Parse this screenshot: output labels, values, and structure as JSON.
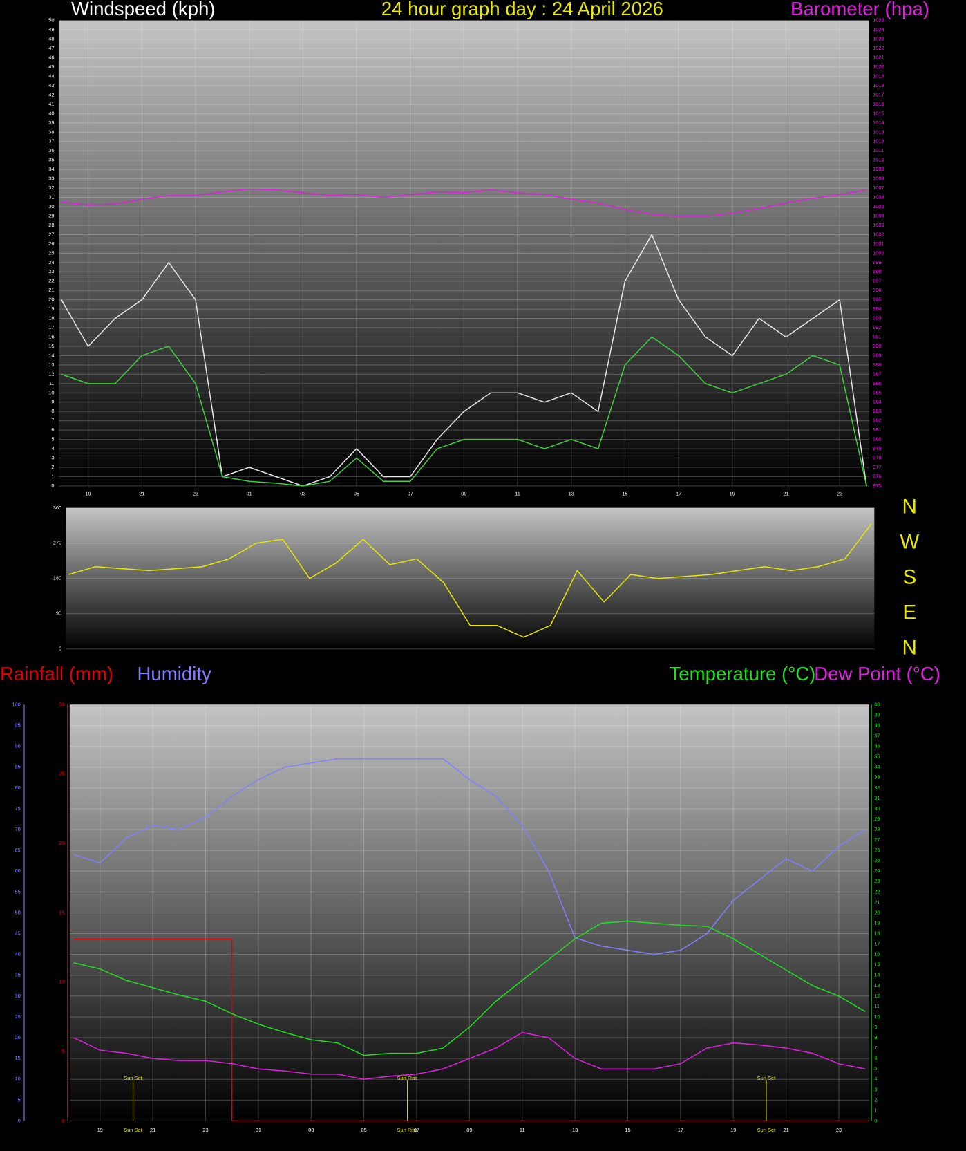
{
  "chart_data": [
    {
      "type": "line",
      "title": "24 hour graph day : 24 April 2026",
      "ylabel": "Windspeed (kph)",
      "grid": true,
      "x": [
        0,
        1,
        2,
        3,
        4,
        5,
        6,
        7,
        8,
        9,
        10,
        11,
        12,
        13,
        14,
        15,
        16,
        17,
        18,
        19,
        20,
        21,
        22,
        23,
        24,
        25,
        26,
        27,
        28,
        29,
        30
      ],
      "xlim": [
        -0.1,
        30.1
      ],
      "xticks": [
        {
          "value": 1,
          "label": "19"
        },
        {
          "value": 3,
          "label": "21"
        },
        {
          "value": 5,
          "label": "23"
        },
        {
          "value": 7,
          "label": "01"
        },
        {
          "value": 9,
          "label": "03"
        },
        {
          "value": 11,
          "label": "05"
        },
        {
          "value": 13,
          "label": "07"
        },
        {
          "value": 15,
          "label": "09"
        },
        {
          "value": 17,
          "label": "11"
        },
        {
          "value": 19,
          "label": "13"
        },
        {
          "value": 21,
          "label": "15"
        },
        {
          "value": 23,
          "label": "17"
        },
        {
          "value": 25,
          "label": "19"
        },
        {
          "value": 27,
          "label": "21"
        },
        {
          "value": 29,
          "label": "23"
        }
      ],
      "ylim": [
        0,
        50
      ],
      "yticks": [
        0,
        1,
        2,
        3,
        4,
        5,
        6,
        7,
        8,
        9,
        10,
        11,
        12,
        13,
        14,
        15,
        16,
        17,
        18,
        19,
        20,
        21,
        22,
        23,
        24,
        25,
        26,
        27,
        28,
        29,
        30,
        31,
        32,
        33,
        34,
        35,
        36,
        37,
        38,
        39,
        40,
        41,
        42,
        43,
        44,
        45,
        46,
        47,
        48,
        49,
        50
      ],
      "y2lim": [
        975,
        1025
      ],
      "y2ticks": [
        975,
        976,
        977,
        978,
        979,
        980,
        981,
        982,
        983,
        984,
        985,
        986,
        987,
        988,
        989,
        990,
        991,
        992,
        993,
        994,
        995,
        996,
        997,
        998,
        999,
        1000,
        1001,
        1002,
        1003,
        1004,
        1005,
        1006,
        1007,
        1008,
        1009,
        1010,
        1011,
        1012,
        1013,
        1014,
        1015,
        1016,
        1017,
        1018,
        1019,
        1020,
        1021,
        1022,
        1023,
        1024,
        1025
      ],
      "series": [
        {
          "color": "#e8e8e8",
          "values": [
            20,
            15,
            18,
            20,
            24,
            20,
            1,
            2,
            1,
            0,
            1,
            4,
            1,
            1,
            5,
            8,
            10,
            10,
            9,
            10,
            8,
            22,
            27,
            20,
            16,
            14,
            18,
            16,
            18,
            20,
            0
          ]
        },
        {
          "color": "#40d040",
          "values": [
            12,
            11,
            11,
            14,
            15,
            11,
            1,
            0.5,
            0.3,
            0,
            0.5,
            3,
            0.5,
            0.5,
            4,
            5,
            5,
            5,
            4,
            5,
            4,
            13,
            16,
            14,
            11,
            10,
            11,
            12,
            14,
            13,
            0
          ]
        },
        {
          "name": "Barometer (hpa)",
          "color": "#e020e0",
          "axis": "y2",
          "values": [
            1005.5,
            1005.2,
            1005.3,
            1005.8,
            1006.2,
            1006.2,
            1006.6,
            1006.9,
            1006.8,
            1006.5,
            1006.2,
            1006.3,
            1006.0,
            1006.3,
            1006.6,
            1006.5,
            1006.8,
            1006.5,
            1006.3,
            1005.8,
            1005.4,
            1004.7,
            1004.2,
            1004.0,
            1004.0,
            1004.3,
            1004.8,
            1005.4,
            1005.9,
            1006.3,
            1006.8
          ]
        }
      ]
    },
    {
      "type": "line",
      "grid": true,
      "x": [
        0,
        1,
        2,
        3,
        4,
        5,
        6,
        7,
        8,
        9,
        10,
        11,
        12,
        13,
        14,
        15,
        16,
        17,
        18,
        19,
        20,
        21,
        22,
        23,
        24,
        25,
        26,
        27,
        28,
        29,
        30
      ],
      "xlim": [
        -0.1,
        30.1
      ],
      "ylim": [
        0,
        360
      ],
      "yticks": [
        0,
        90,
        180,
        270,
        360
      ],
      "y2lim": [
        0,
        360
      ],
      "y2ticks": [
        {
          "value": 360,
          "label": "N"
        },
        {
          "value": 270,
          "label": "W"
        },
        {
          "value": 180,
          "label": "S"
        },
        {
          "value": 90,
          "label": "E"
        },
        {
          "value": 0,
          "label": "N"
        }
      ],
      "series": [
        {
          "color": "#e8e800",
          "values": [
            190,
            210,
            205,
            200,
            205,
            210,
            230,
            270,
            280,
            180,
            220,
            280,
            215,
            230,
            170,
            60,
            60,
            30,
            60,
            200,
            120,
            190,
            180,
            185,
            190,
            200,
            210,
            200,
            210,
            230,
            320
          ]
        }
      ]
    },
    {
      "type": "line",
      "grid": true,
      "x": [
        0,
        1,
        2,
        3,
        4,
        5,
        6,
        7,
        8,
        9,
        10,
        11,
        12,
        13,
        14,
        15,
        16,
        17,
        18,
        19,
        20,
        21,
        22,
        23,
        24,
        25,
        26,
        27,
        28,
        29,
        30
      ],
      "xlim": [
        -0.15,
        30.15
      ],
      "xticks": [
        {
          "value": 1,
          "label": "19"
        },
        {
          "value": 3,
          "label": "21"
        },
        {
          "value": 5,
          "label": "23"
        },
        {
          "value": 7,
          "label": "01"
        },
        {
          "value": 9,
          "label": "03"
        },
        {
          "value": 11,
          "label": "05"
        },
        {
          "value": 13,
          "label": "07"
        },
        {
          "value": 15,
          "label": "09"
        },
        {
          "value": 17,
          "label": "11"
        },
        {
          "value": 19,
          "label": "13"
        },
        {
          "value": 21,
          "label": "15"
        },
        {
          "value": 23,
          "label": "17"
        },
        {
          "value": 25,
          "label": "19"
        },
        {
          "value": 27,
          "label": "21"
        },
        {
          "value": 29,
          "label": "23"
        }
      ],
      "ylim": [
        0,
        30
      ],
      "yticks": [
        0,
        5,
        10,
        15,
        20,
        25,
        30
      ],
      "y3lim": [
        0,
        100
      ],
      "y3ticks": [
        0,
        5,
        10,
        15,
        20,
        25,
        30,
        35,
        40,
        45,
        50,
        55,
        60,
        65,
        70,
        75,
        80,
        85,
        90,
        95,
        100
      ],
      "y2lim": [
        0,
        40
      ],
      "y2ticks": [
        0,
        1,
        2,
        3,
        4,
        5,
        6,
        7,
        8,
        9,
        10,
        11,
        12,
        13,
        14,
        15,
        16,
        17,
        18,
        19,
        20,
        21,
        22,
        23,
        24,
        25,
        26,
        27,
        28,
        29,
        30,
        31,
        32,
        33,
        34,
        35,
        36,
        37,
        38,
        39,
        40
      ],
      "annotations": [
        {
          "x": 2.25,
          "text": "Sun Set"
        },
        {
          "x": 12.65,
          "text": "Sun Rise"
        },
        {
          "x": 26.25,
          "text": "Sun Set"
        }
      ],
      "series": [
        {
          "name": "Rainfall (mm)",
          "color": "#e00000",
          "x": [
            0,
            6,
            6,
            30.15
          ],
          "values": [
            13.1,
            13.1,
            0,
            0
          ]
        },
        {
          "name": "Humidity",
          "color": "#8080ff",
          "axis": "y3",
          "values": [
            64,
            62,
            68,
            71,
            70,
            73,
            78,
            82,
            85,
            86,
            87,
            87,
            87,
            87,
            87,
            82,
            78,
            71,
            60,
            44,
            42,
            41,
            40,
            41,
            45,
            53,
            58,
            63,
            60,
            66,
            70
          ]
        },
        {
          "name": "Temperature (°C)",
          "color": "#20e020",
          "axis": "y2",
          "values": [
            15.2,
            14.6,
            13.5,
            12.8,
            12.1,
            11.5,
            10.3,
            9.3,
            8.5,
            7.8,
            7.5,
            6.3,
            6.5,
            6.5,
            7.0,
            9.0,
            11.5,
            13.5,
            15.5,
            17.5,
            19.0,
            19.2,
            19.0,
            18.8,
            18.7,
            17.5,
            16.0,
            14.5,
            13.0,
            12.0,
            10.5
          ]
        },
        {
          "name": "Dew Point (°C)",
          "color": "#e020e0",
          "axis": "y2",
          "values": [
            8.0,
            6.8,
            6.5,
            6.0,
            5.8,
            5.8,
            5.5,
            5.0,
            4.8,
            4.5,
            4.5,
            4.0,
            4.3,
            4.5,
            5.0,
            6.0,
            7.0,
            8.5,
            8.0,
            6.0,
            5.0,
            5.0,
            5.0,
            5.5,
            7.0,
            7.5,
            7.3,
            7.0,
            6.5,
            5.5,
            5.0
          ]
        }
      ]
    }
  ]
}
